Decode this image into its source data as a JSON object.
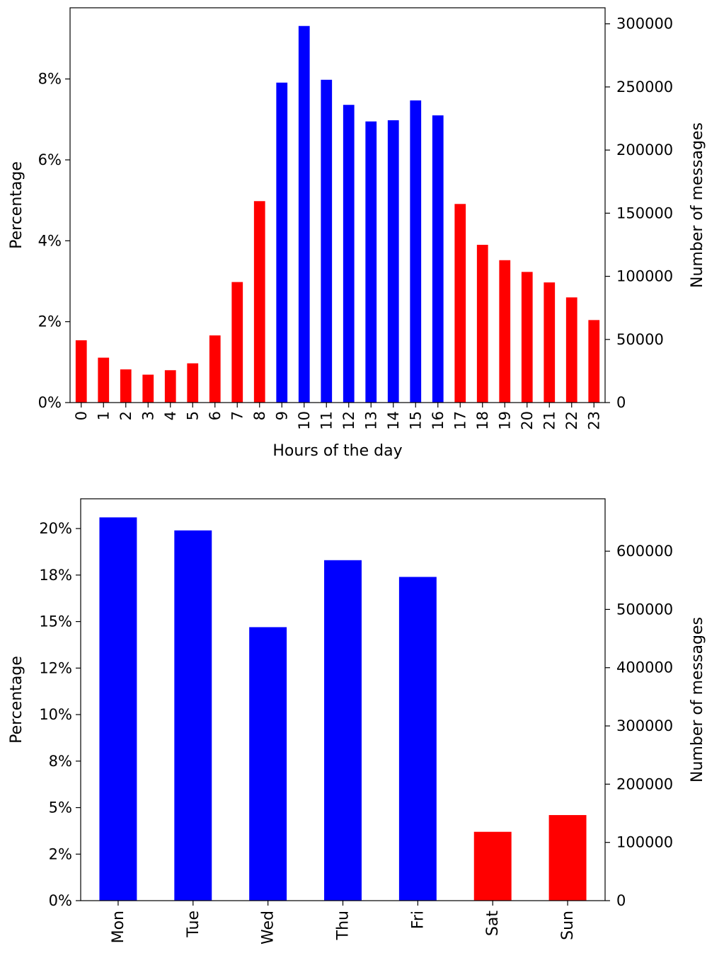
{
  "colors": {
    "weekday": "#0000ff",
    "weekend": "#ff0000",
    "axis": "#000000",
    "background": "#ffffff"
  },
  "chart_data": [
    {
      "type": "bar",
      "xlabel": "Hours of the day",
      "ylabel": "Percentage",
      "y2label": "Number of messages",
      "categories": [
        "0",
        "1",
        "2",
        "3",
        "4",
        "5",
        "6",
        "7",
        "8",
        "9",
        "10",
        "11",
        "12",
        "13",
        "14",
        "15",
        "16",
        "17",
        "18",
        "19",
        "20",
        "21",
        "22",
        "23"
      ],
      "values": [
        1.54,
        1.11,
        0.82,
        0.69,
        0.8,
        0.97,
        1.66,
        2.98,
        4.98,
        7.91,
        9.31,
        7.98,
        7.36,
        6.95,
        6.98,
        7.47,
        7.1,
        4.91,
        3.9,
        3.52,
        3.23,
        2.97,
        2.6,
        2.04
      ],
      "highlight": [
        false,
        false,
        false,
        false,
        false,
        false,
        false,
        false,
        false,
        true,
        true,
        true,
        true,
        true,
        true,
        true,
        true,
        false,
        false,
        false,
        false,
        false,
        false,
        false
      ],
      "ylim": [
        0,
        9.76
      ],
      "yticks": [
        0,
        2,
        4,
        6,
        8
      ],
      "ytick_labels": [
        "0%",
        "2%",
        "4%",
        "6%",
        "8%"
      ],
      "y2lim": [
        0,
        312700
      ],
      "y2ticks": [
        0,
        50000,
        100000,
        150000,
        200000,
        250000,
        300000
      ],
      "y2tick_labels": [
        "0",
        "50000",
        "100000",
        "150000",
        "200000",
        "250000",
        "300000"
      ],
      "grid": false
    },
    {
      "type": "bar",
      "xlabel": "",
      "ylabel": "Percentage",
      "y2label": "Number of messages",
      "categories": [
        "Mon",
        "Tue",
        "Wed",
        "Thu",
        "Fri",
        "Sat",
        "Sun"
      ],
      "values": [
        20.6,
        19.9,
        14.7,
        18.3,
        17.4,
        3.7,
        4.6
      ],
      "highlight": [
        true,
        true,
        true,
        true,
        true,
        false,
        false
      ],
      "ylim": [
        0,
        21.6
      ],
      "yticks": [
        0,
        2.5,
        5,
        7.5,
        10,
        12.5,
        15,
        17.5,
        20
      ],
      "ytick_labels": [
        "0%",
        "2%",
        "5%",
        "8%",
        "10%",
        "12%",
        "15%",
        "18%",
        "20%"
      ],
      "y2lim": [
        0,
        690000
      ],
      "y2ticks": [
        0,
        100000,
        200000,
        300000,
        400000,
        500000,
        600000
      ],
      "y2tick_labels": [
        "0",
        "100000",
        "200000",
        "300000",
        "400000",
        "500000",
        "600000"
      ],
      "grid": false
    }
  ]
}
